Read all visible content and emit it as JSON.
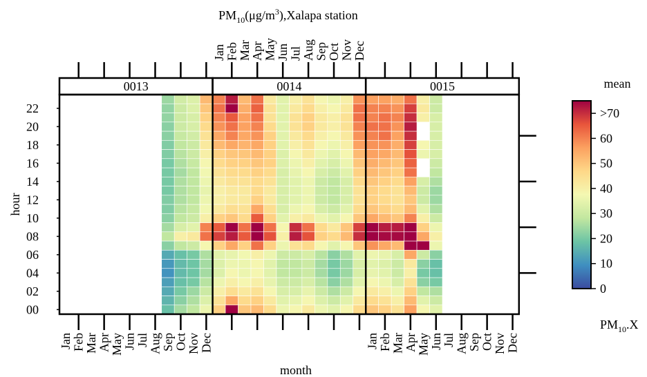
{
  "chart_data": {
    "type": "heatmap",
    "title": {
      "pre": "PM",
      "sub": "10",
      "mid": "(μg/m",
      "sup": "3",
      "post": "),Xalapa station"
    },
    "x_label": "month",
    "y_label": "hour",
    "months": [
      "Jan",
      "Feb",
      "Mar",
      "Apr",
      "May",
      "Jun",
      "Jul",
      "Aug",
      "Sep",
      "Oct",
      "Nov",
      "Dec"
    ],
    "ylim": [
      -0.5,
      23.5
    ],
    "yticks": [
      {
        "value": 0,
        "label": "00"
      },
      {
        "value": 2,
        "label": "02"
      },
      {
        "value": 4,
        "label": "04"
      },
      {
        "value": 6,
        "label": "06"
      },
      {
        "value": 8,
        "label": "08"
      },
      {
        "value": 10,
        "label": "10"
      },
      {
        "value": 12,
        "label": "12"
      },
      {
        "value": 14,
        "label": "14"
      },
      {
        "value": 16,
        "label": "16"
      },
      {
        "value": 18,
        "label": "18"
      },
      {
        "value": 20,
        "label": "20"
      },
      {
        "value": 22,
        "label": "22"
      }
    ],
    "y2ticks": [
      4,
      9,
      14,
      19
    ],
    "legend": {
      "title": "mean",
      "label": {
        "pre": "PM",
        "sub": "10",
        "post": ".X"
      },
      "zlim": [
        0,
        75
      ],
      "ticks": [
        0,
        10,
        20,
        30,
        40,
        50,
        60,
        {
          "value": 70,
          "label": ">70"
        }
      ],
      "colors": [
        "#3b4ba0",
        "#3f8fc0",
        "#6cc4a5",
        "#c2e7a0",
        "#f4f8b2",
        "#fed888",
        "#fca160",
        "#e8553b",
        "#9e0142"
      ]
    },
    "panels": [
      {
        "label": "0013",
        "values": [
          null,
          null,
          null,
          null,
          null,
          null,
          null,
          null,
          [
            18,
            16,
            14,
            12,
            10,
            11,
            14,
            22,
            28,
            25,
            22,
            21,
            21,
            20,
            20,
            20,
            20,
            21,
            21,
            22,
            22,
            23,
            23,
            24
          ],
          [
            25,
            22,
            20,
            18,
            17,
            17,
            18,
            28,
            40,
            32,
            28,
            27,
            26,
            26,
            26,
            25,
            26,
            27,
            28,
            29,
            30,
            30,
            30,
            31
          ],
          [
            28,
            26,
            24,
            20,
            19,
            19,
            20,
            30,
            42,
            34,
            30,
            29,
            28,
            28,
            28,
            28,
            29,
            30,
            30,
            31,
            32,
            32,
            33,
            33
          ],
          [
            36,
            33,
            30,
            27,
            25,
            25,
            26,
            38,
            62,
            60,
            40,
            37,
            36,
            35,
            36,
            37,
            38,
            40,
            42,
            44,
            46,
            48,
            50,
            52
          ]
        ]
      },
      {
        "label": "0014",
        "values": [
          [
            48,
            44,
            40,
            36,
            33,
            33,
            34,
            48,
            68,
            65,
            48,
            42,
            40,
            40,
            42,
            44,
            46,
            48,
            52,
            55,
            58,
            60,
            62,
            60
          ],
          [
            75,
            55,
            45,
            40,
            38,
            36,
            35,
            55,
            72,
            75,
            50,
            45,
            42,
            42,
            44,
            46,
            48,
            50,
            55,
            60,
            62,
            65,
            75,
            72
          ],
          [
            50,
            46,
            42,
            38,
            36,
            36,
            37,
            48,
            65,
            62,
            46,
            44,
            42,
            42,
            44,
            46,
            48,
            50,
            53,
            55,
            56,
            56,
            54,
            52
          ],
          [
            52,
            48,
            44,
            40,
            38,
            38,
            40,
            62,
            75,
            75,
            65,
            55,
            48,
            46,
            46,
            48,
            50,
            52,
            55,
            58,
            60,
            62,
            64,
            62
          ],
          [
            46,
            42,
            38,
            35,
            34,
            34,
            36,
            48,
            66,
            62,
            48,
            45,
            42,
            42,
            44,
            46,
            48,
            48,
            48,
            48,
            46,
            44,
            44,
            42
          ],
          [
            36,
            34,
            32,
            30,
            28,
            28,
            30,
            36,
            40,
            38,
            34,
            32,
            32,
            32,
            32,
            32,
            33,
            33,
            34,
            34,
            34,
            34,
            34,
            34
          ],
          [
            38,
            35,
            32,
            30,
            28,
            28,
            30,
            44,
            72,
            70,
            40,
            36,
            34,
            34,
            34,
            35,
            36,
            38,
            40,
            42,
            44,
            44,
            42,
            40
          ],
          [
            42,
            38,
            35,
            32,
            30,
            30,
            32,
            46,
            66,
            62,
            42,
            38,
            36,
            36,
            36,
            38,
            40,
            42,
            44,
            46,
            48,
            48,
            46,
            44
          ],
          [
            36,
            33,
            30,
            27,
            25,
            25,
            27,
            38,
            48,
            46,
            36,
            32,
            30,
            30,
            30,
            32,
            34,
            36,
            38,
            40,
            42,
            42,
            40,
            38
          ],
          [
            34,
            30,
            26,
            22,
            20,
            20,
            22,
            34,
            46,
            42,
            34,
            30,
            28,
            28,
            28,
            30,
            32,
            34,
            36,
            38,
            40,
            40,
            38,
            36
          ],
          [
            38,
            34,
            30,
            26,
            24,
            24,
            26,
            38,
            52,
            50,
            38,
            34,
            32,
            32,
            32,
            34,
            36,
            38,
            40,
            42,
            44,
            44,
            42,
            40
          ],
          [
            46,
            42,
            38,
            34,
            32,
            32,
            34,
            50,
            70,
            68,
            50,
            46,
            44,
            44,
            46,
            48,
            50,
            52,
            56,
            58,
            60,
            62,
            62,
            58
          ]
        ]
      },
      {
        "label": "0015",
        "values": [
          [
            50,
            46,
            42,
            38,
            35,
            34,
            36,
            58,
            75,
            75,
            55,
            50,
            48,
            48,
            50,
            52,
            54,
            56,
            58,
            60,
            62,
            60,
            60,
            56
          ],
          [
            48,
            44,
            40,
            36,
            34,
            33,
            35,
            55,
            74,
            72,
            52,
            48,
            46,
            46,
            48,
            50,
            52,
            55,
            58,
            62,
            62,
            62,
            60,
            56
          ],
          [
            44,
            40,
            36,
            32,
            30,
            30,
            32,
            52,
            74,
            72,
            50,
            46,
            44,
            44,
            46,
            48,
            50,
            52,
            54,
            56,
            58,
            60,
            58,
            54
          ],
          [
            56,
            52,
            48,
            44,
            40,
            42,
            55,
            75,
            75,
            75,
            60,
            52,
            50,
            52,
            56,
            62,
            64,
            66,
            68,
            70,
            72,
            70,
            68,
            62
          ],
          [
            38,
            34,
            28,
            22,
            20,
            22,
            30,
            75,
            55,
            48,
            40,
            34,
            30,
            30,
            32,
            null,
            null,
            36,
            38,
            null,
            null,
            40,
            42,
            40
          ],
          [
            34,
            30,
            26,
            20,
            18,
            18,
            22,
            36,
            40,
            36,
            30,
            26,
            24,
            24,
            26,
            28,
            30,
            32,
            32,
            32,
            32,
            32,
            30,
            30
          ],
          null,
          null,
          null,
          null,
          null,
          null
        ]
      }
    ]
  }
}
